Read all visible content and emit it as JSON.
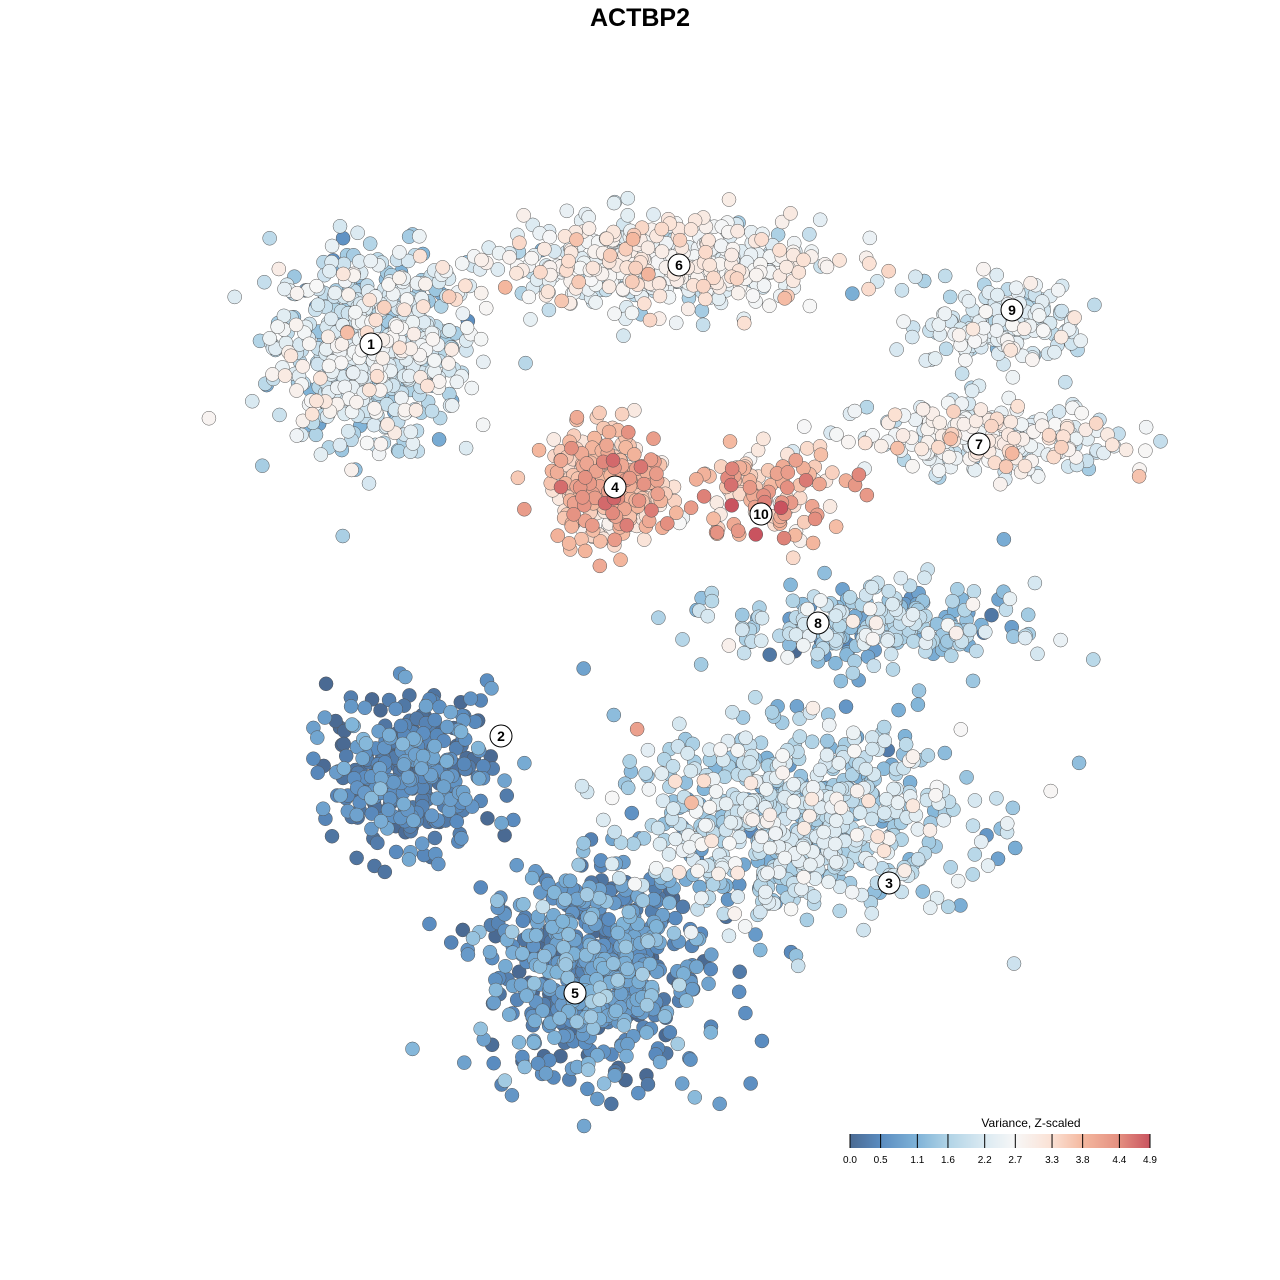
{
  "chart_data": {
    "type": "scatter",
    "title": "ACTBP2",
    "xlabel": "",
    "ylabel": "",
    "xlim": [
      -9.5,
      10
    ],
    "ylim": [
      -9.5,
      9.5
    ],
    "grid": false,
    "legend": {
      "title": "Variance, Z-scaled",
      "placement": "bottom-right",
      "ticks": [
        "0.0",
        "0.5",
        "1.1",
        "1.6",
        "2.2",
        "2.7",
        "3.3",
        "3.8",
        "4.4",
        "4.9"
      ],
      "tick_values": [
        0.0,
        0.5,
        1.1,
        1.6,
        2.2,
        2.7,
        3.3,
        3.8,
        4.4,
        4.9
      ],
      "colors": [
        "#4a6a93",
        "#5a8cc0",
        "#7fb3d8",
        "#b0d3e6",
        "#dbeaf2",
        "#f7f7f7",
        "#fbe1d4",
        "#f4b89f",
        "#e48f80",
        "#c9535f"
      ]
    },
    "clusters": [
      {
        "label": "1",
        "center": [
          -5.4,
          5.9
        ],
        "label_pos": [
          -5.38,
          5.92
        ],
        "spread": [
          1.9,
          1.9
        ],
        "n": 650,
        "mean": 2.0,
        "sd": 0.55
      },
      {
        "label": "6",
        "center": [
          0.4,
          7.5
        ],
        "label_pos": [
          0.78,
          7.5
        ],
        "spread": [
          3.2,
          0.9
        ],
        "n": 520,
        "mean": 2.5,
        "sd": 0.5
      },
      {
        "label": "9",
        "center": [
          7.3,
          6.3
        ],
        "label_pos": [
          7.44,
          6.6
        ],
        "spread": [
          1.7,
          0.9
        ],
        "n": 170,
        "mean": 2.2,
        "sd": 0.35
      },
      {
        "label": "7",
        "center": [
          7.0,
          4.0
        ],
        "label_pos": [
          6.78,
          3.92
        ],
        "spread": [
          2.5,
          0.7
        ],
        "n": 260,
        "mean": 2.5,
        "sd": 0.55
      },
      {
        "label": "4",
        "center": [
          -0.6,
          3.1
        ],
        "label_pos": [
          -0.5,
          3.06
        ],
        "spread": [
          1.2,
          1.1
        ],
        "n": 300,
        "mean": 3.6,
        "sd": 0.45
      },
      {
        "label": "10",
        "center": [
          2.6,
          2.9
        ],
        "label_pos": [
          2.42,
          2.52
        ],
        "spread": [
          1.5,
          1.0
        ],
        "n": 120,
        "mean": 3.6,
        "sd": 0.7
      },
      {
        "label": "8",
        "center": [
          4.6,
          0.3
        ],
        "label_pos": [
          3.56,
          0.34
        ],
        "spread": [
          2.8,
          0.8
        ],
        "n": 280,
        "mean": 1.5,
        "sd": 0.55
      },
      {
        "label": "2",
        "center": [
          -4.6,
          -2.6
        ],
        "label_pos": [
          -2.78,
          -1.92
        ],
        "spread": [
          1.6,
          1.5
        ],
        "n": 340,
        "mean": 0.4,
        "sd": 0.35
      },
      {
        "label": "5",
        "center": [
          -0.9,
          -6.6
        ],
        "label_pos": [
          -1.3,
          -7.06
        ],
        "spread": [
          2.2,
          2.1
        ],
        "n": 620,
        "mean": 0.6,
        "sd": 0.4
      },
      {
        "label": "3",
        "center": [
          3.0,
          -3.6
        ],
        "label_pos": [
          4.98,
          -4.86
        ],
        "spread": [
          3.5,
          1.9
        ],
        "n": 700,
        "mean": 1.8,
        "sd": 0.55
      }
    ]
  }
}
